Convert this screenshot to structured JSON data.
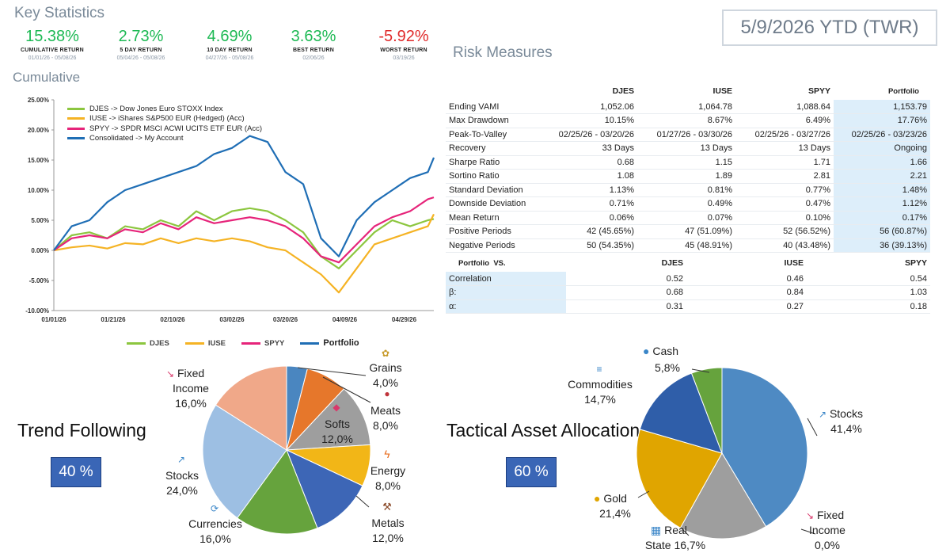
{
  "key_statistics": {
    "title": "Key Statistics",
    "stats": [
      {
        "value": "15.38%",
        "label": "CUMULATIVE RETURN",
        "dates": "01/01/26 - 05/08/26",
        "color": "#1db954"
      },
      {
        "value": "2.73%",
        "label": "5 DAY RETURN",
        "dates": "05/04/26 - 05/08/26",
        "color": "#1db954"
      },
      {
        "value": "4.69%",
        "label": "10 DAY RETURN",
        "dates": "04/27/26 - 05/08/26",
        "color": "#1db954"
      },
      {
        "value": "3.63%",
        "label": "BEST RETURN",
        "dates": "02/06/26",
        "color": "#1db954"
      },
      {
        "value": "-5.92%",
        "label": "WORST RETURN",
        "dates": "03/19/26",
        "color": "#e02a2a"
      }
    ]
  },
  "date_badge": "5/9/2026 YTD (TWR)",
  "risk_measures": {
    "title": "Risk Measures",
    "columns": [
      "DJES",
      "IUSE",
      "SPYY",
      "Portfolio"
    ],
    "rows": [
      {
        "label": "Ending VAMI",
        "values": [
          "1,052.06",
          "1,064.78",
          "1,088.64",
          "1,153.79"
        ]
      },
      {
        "label": "Max Drawdown",
        "values": [
          "10.15%",
          "8.67%",
          "6.49%",
          "17.76%"
        ]
      },
      {
        "label": "Peak-To-Valley",
        "values": [
          "02/25/26 - 03/20/26",
          "01/27/26 - 03/30/26",
          "02/25/26 - 03/27/26",
          "02/25/26 - 03/23/26"
        ]
      },
      {
        "label": "Recovery",
        "values": [
          "33 Days",
          "13 Days",
          "13 Days",
          "Ongoing"
        ]
      },
      {
        "label": "Sharpe Ratio",
        "values": [
          "0.68",
          "1.15",
          "1.71",
          "1.66"
        ]
      },
      {
        "label": "Sortino Ratio",
        "values": [
          "1.08",
          "1.89",
          "2.81",
          "2.21"
        ]
      },
      {
        "label": "Standard Deviation",
        "values": [
          "1.13%",
          "0.81%",
          "0.77%",
          "1.48%"
        ]
      },
      {
        "label": "Downside Deviation",
        "values": [
          "0.71%",
          "0.49%",
          "0.47%",
          "1.12%"
        ]
      },
      {
        "label": "Mean Return",
        "values": [
          "0.06%",
          "0.07%",
          "0.10%",
          "0.17%"
        ]
      },
      {
        "label": "Positive Periods",
        "values": [
          "42 (45.65%)",
          "47 (51.09%)",
          "52 (56.52%)",
          "56 (60.87%)"
        ]
      },
      {
        "label": "Negative Periods",
        "values": [
          "50 (54.35%)",
          "45 (48.91%)",
          "40 (43.48%)",
          "36 (39.13%)"
        ]
      }
    ],
    "comparison": {
      "header_left": "Portfolio",
      "header_vs": "VS.",
      "columns": [
        "DJES",
        "IUSE",
        "SPYY"
      ],
      "rows": [
        {
          "label": "Correlation",
          "values": [
            "0.52",
            "0.46",
            "0.54"
          ]
        },
        {
          "label": "β:",
          "values": [
            "0.68",
            "0.84",
            "1.03"
          ]
        },
        {
          "label": "α:",
          "values": [
            "0.31",
            "0.27",
            "0.18"
          ]
        }
      ]
    }
  },
  "cumulative": {
    "title": "Cumulative",
    "legend_inside": [
      {
        "text": "DJES -> Dow Jones Euro STOXX Index",
        "color": "#8cc63f"
      },
      {
        "text": "IUSE -> iShares S&P500 EUR (Hedged) (Acc)",
        "color": "#f5b324"
      },
      {
        "text": "SPYY -> SPDR MSCI ACWI UCITS ETF EUR (Acc)",
        "color": "#e6247a"
      },
      {
        "text": "Consolidated -> My Account",
        "color": "#1f6eb5"
      }
    ],
    "legend_bottom": [
      "DJES",
      "IUSE",
      "SPYY",
      "Portfolio"
    ]
  },
  "chart_data": [
    {
      "type": "line",
      "title": "",
      "xlabel": "",
      "ylabel": "",
      "ylim": [
        -10,
        25
      ],
      "yticks": [
        "25.00%",
        "20.00%",
        "15.00%",
        "10.00%",
        "5.00%",
        "0.00%",
        "-5.00%",
        "-10.00%"
      ],
      "xticks": [
        "01/01/26",
        "01/21/26",
        "02/10/26",
        "03/02/26",
        "03/20/26",
        "04/09/26",
        "04/29/26"
      ],
      "x": [
        0,
        6,
        12,
        18,
        24,
        30,
        36,
        42,
        48,
        54,
        60,
        66,
        72,
        78,
        84,
        90,
        96,
        102,
        108,
        114,
        120,
        126,
        128
      ],
      "series": [
        {
          "name": "DJES",
          "color": "#8cc63f",
          "values": [
            0,
            2.5,
            3,
            2,
            4,
            3.5,
            5,
            4,
            6.5,
            5,
            6.5,
            7,
            6.5,
            5,
            3,
            -1,
            -3,
            0,
            3,
            5,
            4,
            5,
            5.2
          ]
        },
        {
          "name": "IUSE",
          "color": "#f5b324",
          "values": [
            0,
            0.5,
            0.8,
            0.3,
            1.2,
            1,
            2,
            1.2,
            2,
            1.5,
            2,
            1.5,
            0.5,
            0,
            -2,
            -4,
            -7,
            -3,
            1,
            2,
            3,
            4,
            6
          ]
        },
        {
          "name": "SPYY",
          "color": "#e6247a",
          "values": [
            0,
            2,
            2.5,
            2,
            3.5,
            3,
            4.5,
            3.5,
            5.5,
            4.5,
            5,
            5.5,
            5,
            4,
            2,
            -1,
            -2,
            1,
            4,
            5.5,
            6.5,
            8.5,
            8.8
          ]
        },
        {
          "name": "Portfolio",
          "color": "#1f6eb5",
          "values": [
            0,
            4,
            5,
            8,
            10,
            11,
            12,
            13,
            14,
            16,
            17,
            19,
            18,
            13,
            11,
            2,
            -1,
            5,
            8,
            10,
            12,
            13,
            15.4
          ]
        }
      ]
    },
    {
      "type": "pie",
      "title": "Trend Following",
      "slices": [
        {
          "label": "Grains",
          "value": 4.0,
          "display": "4,0%",
          "color": "#4a86c0"
        },
        {
          "label": "Meats",
          "value": 8.0,
          "display": "8,0%",
          "color": "#e6772b"
        },
        {
          "label": "Softs",
          "value": 12.0,
          "display": "12,0%",
          "color": "#9e9e9e"
        },
        {
          "label": "Energy",
          "value": 8.0,
          "display": "8,0%",
          "color": "#f2b617"
        },
        {
          "label": "Metals",
          "value": 12.0,
          "display": "12,0%",
          "color": "#3d66b6"
        },
        {
          "label": "Currencies",
          "value": 16.0,
          "display": "16,0%",
          "color": "#66a33d"
        },
        {
          "label": "Stocks",
          "value": 24.0,
          "display": "24,0%",
          "color": "#9dbfe3"
        },
        {
          "label": "Fixed Income",
          "value": 16.0,
          "display": "16,0%",
          "color": "#f0a889"
        }
      ]
    },
    {
      "type": "pie",
      "title": "Tactical Asset Allocation",
      "slices": [
        {
          "label": "Stocks",
          "value": 41.4,
          "display": "41,4%",
          "color": "#4e8ac3"
        },
        {
          "label": "Fixed Income",
          "value": 0.0,
          "display": "0,0%",
          "color": "#e6772b"
        },
        {
          "label": "Real State",
          "value": 16.7,
          "display": "16,7%",
          "color": "#9e9e9e"
        },
        {
          "label": "Gold",
          "value": 21.4,
          "display": "21,4%",
          "color": "#e0a500"
        },
        {
          "label": "Commodities",
          "value": 14.7,
          "display": "14,7%",
          "color": "#2f5ea9"
        },
        {
          "label": "Cash",
          "value": 5.8,
          "display": "5,8%",
          "color": "#66a33d"
        }
      ]
    }
  ],
  "trend": {
    "title": "Trend Following",
    "pct": "40 %",
    "labels": {
      "grains": {
        "name": "Grains",
        "pct": "4,0%"
      },
      "meats": {
        "name": "Meats",
        "pct": "8,0%"
      },
      "softs": {
        "name": "Softs",
        "pct": "12,0%"
      },
      "energy": {
        "name": "Energy",
        "pct": "8,0%"
      },
      "metals": {
        "name": "Metals",
        "pct": "12,0%"
      },
      "currencies": {
        "name": "Currencies",
        "pct": "16,0%"
      },
      "stocks": {
        "name": "Stocks",
        "pct": "24,0%"
      },
      "fixed1": "Fixed",
      "fixed2": "Income",
      "fixed_pct": "16,0%"
    }
  },
  "tactical": {
    "title": "Tactical Asset Allocation",
    "pct": "60 %",
    "labels": {
      "cash": {
        "name": "Cash",
        "pct": "5,8%"
      },
      "commodities": {
        "name": "Commodities",
        "pct": "14,7%"
      },
      "stocks": {
        "name": "Stocks",
        "pct": "41,4%"
      },
      "gold": {
        "name": "Gold",
        "pct": "21,4%"
      },
      "real1": "Real",
      "real2": "State",
      "real_pct": "16,7%",
      "fixed1": "Fixed",
      "fixed2": "Income",
      "fixed_pct": "0,0%"
    }
  }
}
